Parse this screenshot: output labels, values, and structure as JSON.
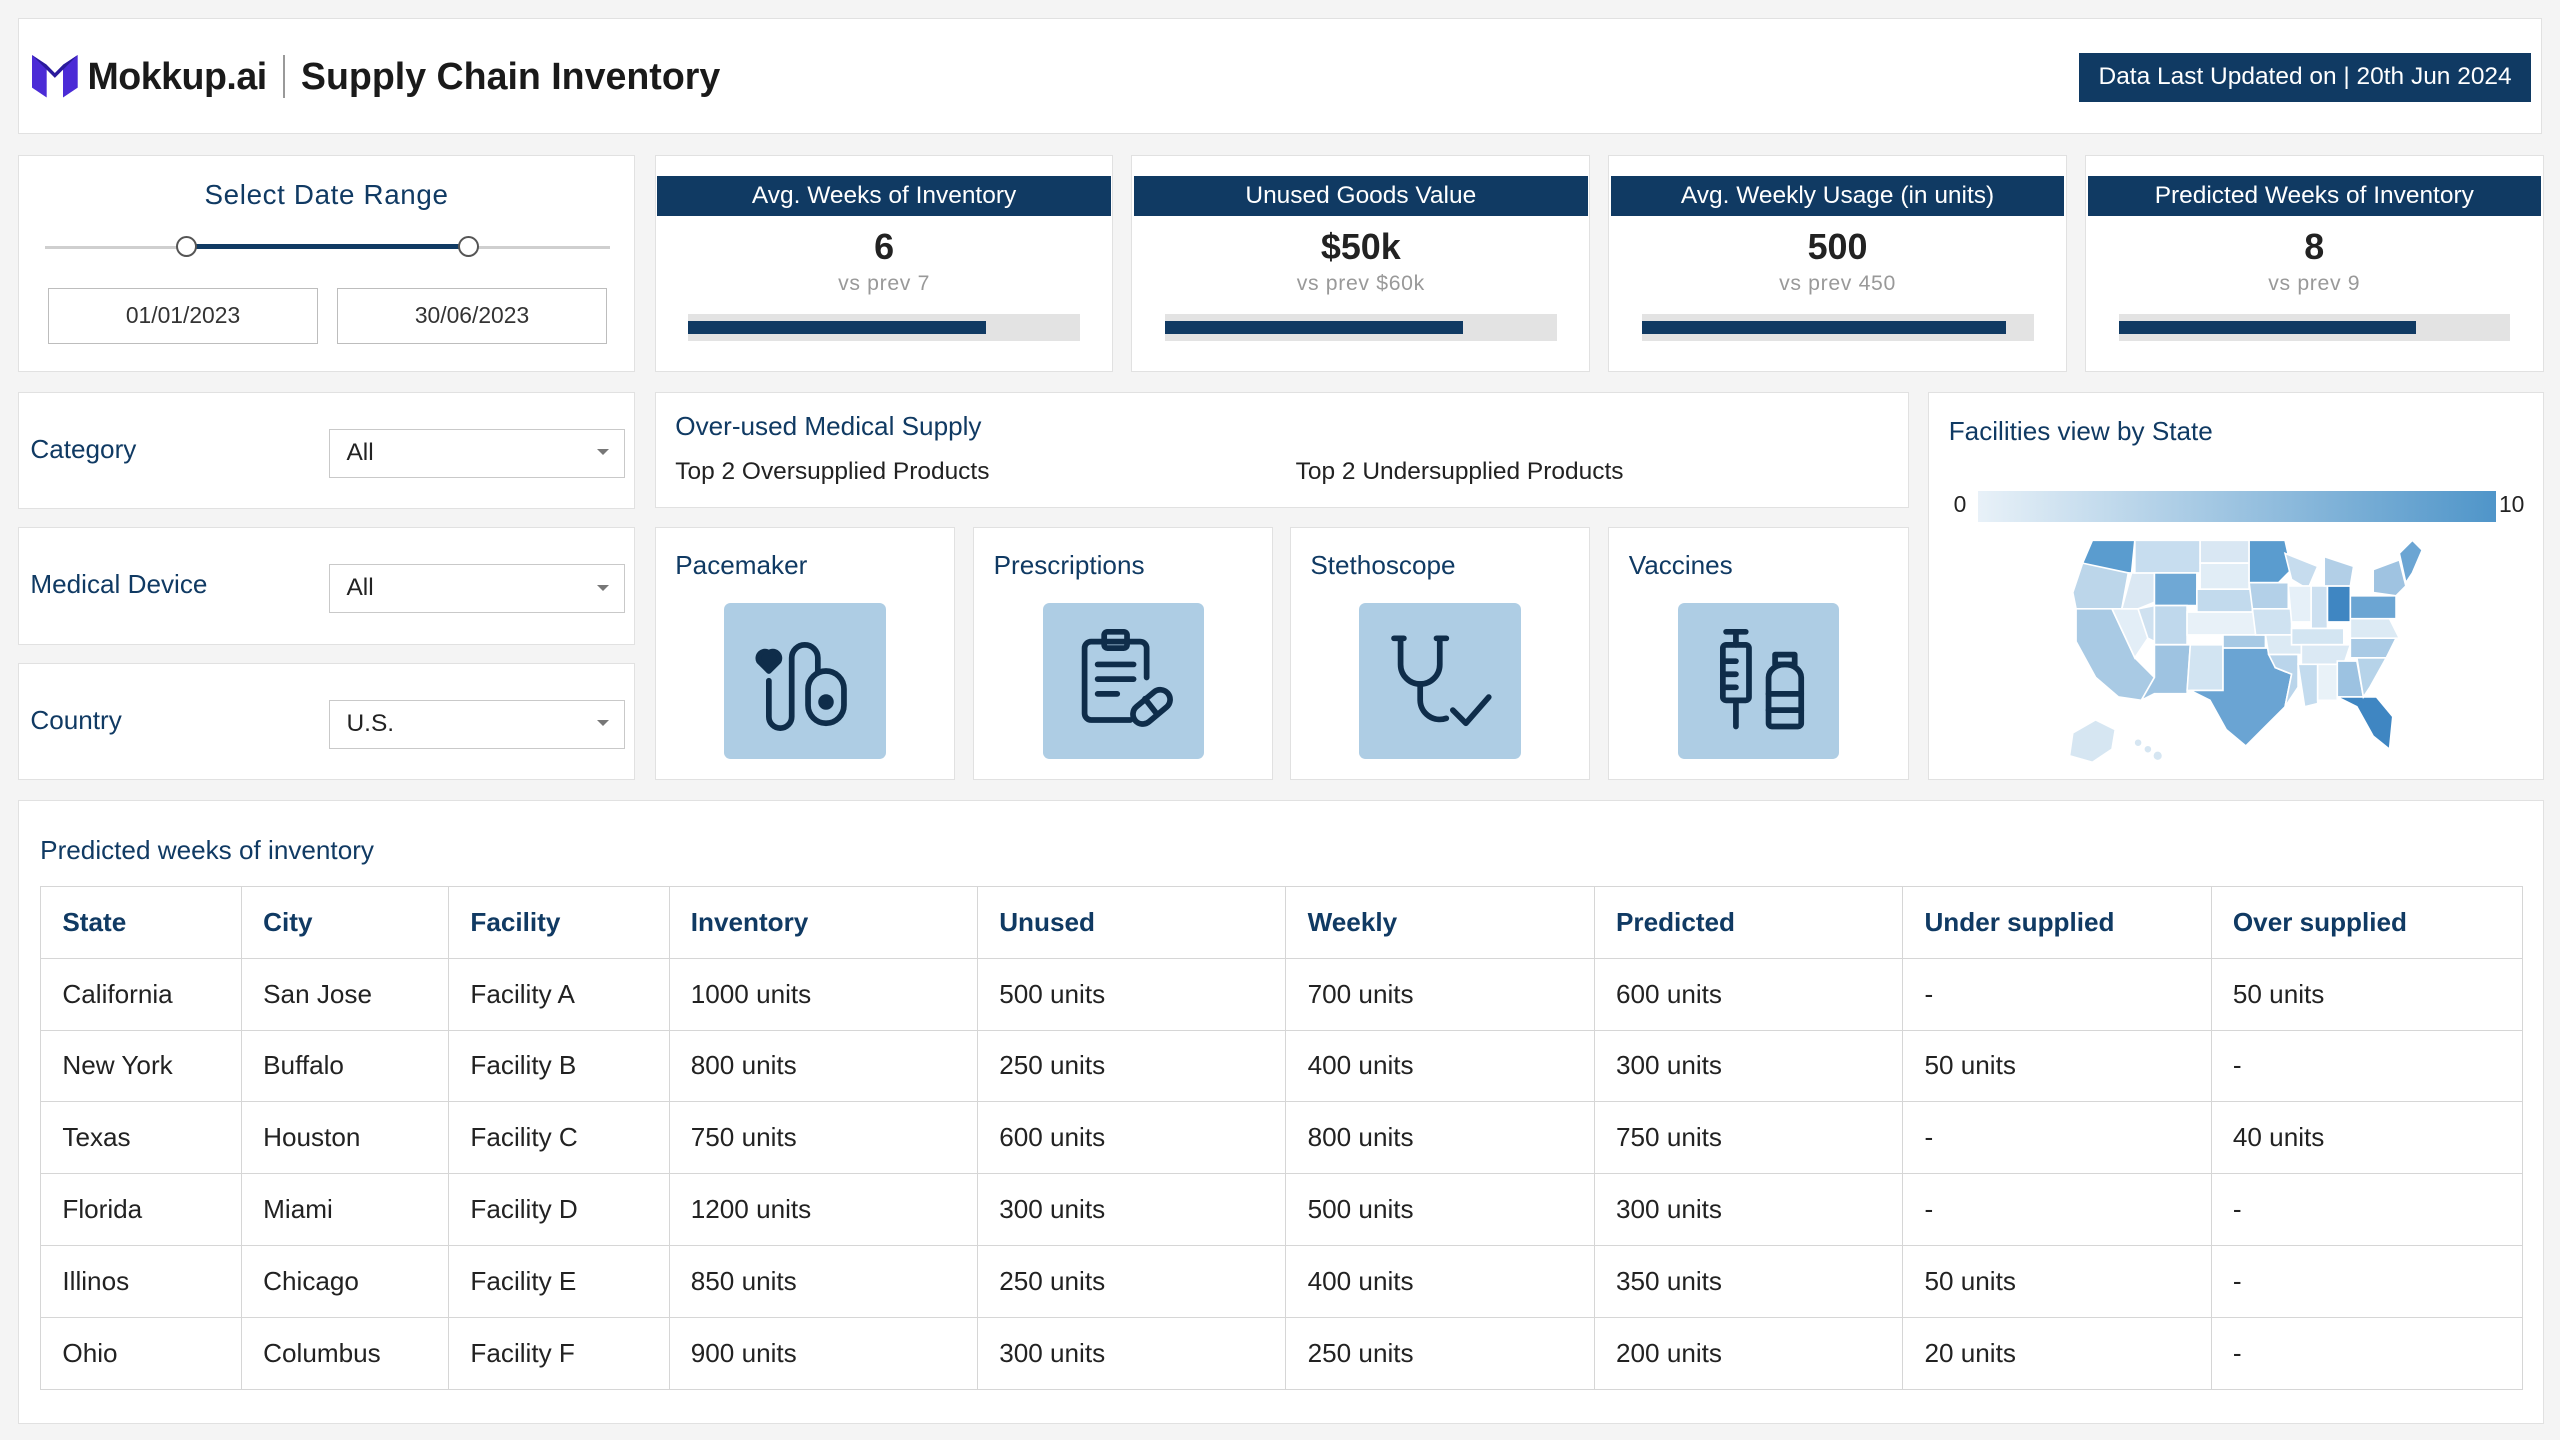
{
  "header": {
    "logo_text": "Mokkup.ai",
    "title": "Supply Chain Inventory",
    "updated": "Data Last Updated on | 20th Jun 2024"
  },
  "date_range": {
    "title": "Select Date Range",
    "start": "01/01/2023",
    "end": "30/06/2023"
  },
  "filters": [
    {
      "label": "Category",
      "value": "All"
    },
    {
      "label": "Medical Device",
      "value": "All"
    },
    {
      "label": "Country",
      "value": "U.S."
    }
  ],
  "kpis": [
    {
      "title": "Avg. Weeks of Inventory",
      "value": "6",
      "prev": "vs prev 7",
      "progress": 0.76
    },
    {
      "title": "Unused Goods Value",
      "value": "$50k",
      "prev": "vs prev $60k",
      "progress": 0.76
    },
    {
      "title": "Avg. Weekly Usage (in units)",
      "value": "500",
      "prev": "vs prev 450",
      "progress": 0.93
    },
    {
      "title": "Predicted Weeks of Inventory",
      "value": "8",
      "prev": "vs prev 9",
      "progress": 0.76
    }
  ],
  "overused": {
    "title": "Over-used Medical Supply",
    "top_over": "Top 2 Oversupplied Products",
    "top_under": "Top 2 Undersupplied Products"
  },
  "products": [
    {
      "label": "Pacemaker",
      "icon": "pacemaker-icon"
    },
    {
      "label": "Prescriptions",
      "icon": "prescription-icon"
    },
    {
      "label": "Stethoscope",
      "icon": "stethoscope-icon"
    },
    {
      "label": "Vaccines",
      "icon": "vaccine-icon"
    }
  ],
  "map": {
    "title": "Facilities view by State",
    "legend_min": "0",
    "legend_max": "10",
    "color_low": "#e8f1f8",
    "color_high": "#4f95c9"
  },
  "table": {
    "title": "Predicted weeks of inventory",
    "headers": [
      "State",
      "City",
      "Facility",
      "Inventory",
      "Unused",
      "Weekly",
      "Predicted",
      "Under supplied",
      "Over supplied"
    ],
    "rows": [
      [
        "California",
        "San Jose",
        "Facility A",
        "1000 units",
        "500 units",
        "700 units",
        "600 units",
        "-",
        "50 units"
      ],
      [
        "New York",
        "Buffalo",
        "Facility B",
        "800 units",
        "250 units",
        "400 units",
        "300 units",
        "50 units",
        "-"
      ],
      [
        "Texas",
        "Houston",
        "Facility C",
        "750 units",
        "600 units",
        "800 units",
        "750 units",
        "-",
        "40 units"
      ],
      [
        "Florida",
        "Miami",
        "Facility D",
        "1200 units",
        "300 units",
        "500 units",
        "300 units",
        "-",
        "-"
      ],
      [
        "Illinos",
        "Chicago",
        "Facility E",
        "850 units",
        "250 units",
        "400 units",
        "350 units",
        "50 units",
        "-"
      ],
      [
        "Ohio",
        "Columbus",
        "Facility F",
        "900 units",
        "300 units",
        "250 units",
        "200 units",
        "20 units",
        "-"
      ]
    ]
  }
}
